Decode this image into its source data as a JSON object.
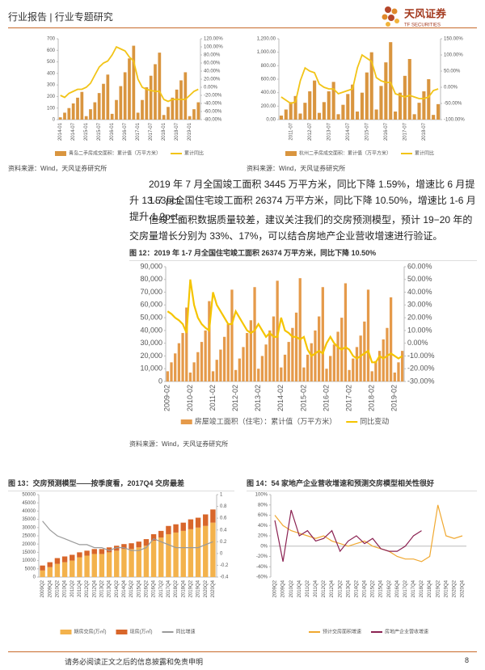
{
  "header": {
    "title": "行业报告 | 行业专题研究",
    "logo": "天风证券",
    "logo_en": "TF SECURITIES"
  },
  "paragraphs": [
    "2019 年 7 月全国竣工面积 3445 万平方米，同比下降 1.59%，增速比 6 月提升 13.53pct。",
    "1-7 月全国住宅竣工面积 26374 万平方米，同比下降 10.50%，增速比 1-6 月提升 1.2pct。",
    "但竣工面积数据质量较差，建议关注我们的交房预测模型，预计 19−20 年的交房量增长分别为 33%、17%，可以结合房地产企业营收增速进行验证。"
  ],
  "chart_data": [
    {
      "type": "bar",
      "source": "资料来源：Wind，天风证券研究所",
      "categories": [
        "2014-01",
        null,
        null,
        "2014-07",
        null,
        null,
        "2015-01",
        null,
        null,
        "2015-07",
        null,
        null,
        "2016-01",
        null,
        null,
        "2016-07",
        null,
        null,
        "2017-01",
        null,
        null,
        "2017-07",
        null,
        null,
        "2018-01",
        null,
        null,
        "2018-07",
        null,
        null,
        "2019-01",
        null,
        null
      ],
      "series": [
        {
          "name": "青岛二手房成交面积：累计值（万平方米）",
          "type": "bar",
          "color": "#d9953f",
          "values": [
            20,
            60,
            100,
            140,
            190,
            240,
            30,
            90,
            150,
            230,
            310,
            390,
            50,
            170,
            290,
            410,
            530,
            640,
            60,
            170,
            280,
            380,
            480,
            580,
            40,
            110,
            190,
            260,
            340,
            410,
            30,
            90,
            150
          ]
        },
        {
          "name": "累计同比",
          "type": "line",
          "axis": "y2",
          "color": "#f2c417",
          "values": [
            -20,
            -25,
            -15,
            -10,
            -5,
            -5,
            0,
            10,
            30,
            50,
            60,
            65,
            80,
            100,
            95,
            90,
            75,
            65,
            20,
            0,
            -5,
            -8,
            -10,
            -10,
            -30,
            -35,
            -30,
            -30,
            -30,
            -30,
            -20,
            -10,
            -5
          ]
        }
      ],
      "ylim": [
        0,
        700
      ],
      "yticks": [
        0,
        100,
        200,
        300,
        400,
        500,
        600,
        700
      ],
      "y2lim": [
        -80,
        120
      ],
      "y2ticks": [
        {
          "value": -80,
          "label": "-80.00%"
        },
        {
          "value": -60,
          "label": "-60.00%"
        },
        {
          "value": -40,
          "label": "-40.00%"
        },
        {
          "value": -20,
          "label": "-20.00%"
        },
        {
          "value": 0,
          "label": "0.00%"
        },
        {
          "value": 20,
          "label": "20.00%"
        },
        {
          "value": 40,
          "label": "40.00%"
        },
        {
          "value": 60,
          "label": "60.00%"
        },
        {
          "value": 80,
          "label": "80.00%"
        },
        {
          "value": 100,
          "label": "100.00%"
        },
        {
          "value": 120,
          "label": "120.00%"
        }
      ]
    },
    {
      "type": "bar",
      "source": "资料来源：Wind，天风证券研究所",
      "categories": [
        null,
        null,
        "2011-07",
        null,
        null,
        null,
        "2012-07",
        null,
        null,
        null,
        "2013-07",
        null,
        null,
        null,
        "2014-07",
        null,
        null,
        null,
        "2015-07",
        null,
        null,
        null,
        "2016-07",
        null,
        null,
        null,
        "2017-07",
        null,
        null,
        null,
        "2018-07",
        null,
        null,
        null
      ],
      "series": [
        {
          "name": "杭州二手房成交面积：累计值（万平方米）",
          "type": "bar",
          "color": "#d9953f",
          "values": [
            60,
            150,
            260,
            350,
            90,
            250,
            420,
            580,
            100,
            260,
            420,
            560,
            80,
            220,
            380,
            520,
            120,
            400,
            700,
            1000,
            150,
            500,
            850,
            1150,
            120,
            400,
            650,
            900,
            80,
            250,
            420,
            600,
            70,
            230
          ]
        },
        {
          "name": "累计同比",
          "type": "line",
          "axis": "y2",
          "color": "#f2c417",
          "values": [
            -30,
            -40,
            -50,
            -45,
            20,
            60,
            50,
            45,
            10,
            0,
            -5,
            -5,
            -20,
            -15,
            -10,
            -5,
            60,
            100,
            90,
            80,
            30,
            20,
            15,
            15,
            -20,
            -25,
            -30,
            -25,
            -30,
            -35,
            -35,
            -30,
            -10,
            -5
          ]
        }
      ],
      "ylim": [
        0,
        1200
      ],
      "yticks": [
        {
          "value": 0,
          "label": "0.00"
        },
        {
          "value": 200,
          "label": "200.00"
        },
        {
          "value": 400,
          "label": "400.00"
        },
        {
          "value": 600,
          "label": "600.00"
        },
        {
          "value": 800,
          "label": "800.00"
        },
        {
          "value": 1000,
          "label": "1,000.00"
        },
        {
          "value": 1200,
          "label": "1,200.00"
        }
      ],
      "y2lim": [
        -100,
        150
      ],
      "y2ticks": [
        {
          "value": -100,
          "label": "-100.00%"
        },
        {
          "value": -50,
          "label": "-50.00%"
        },
        {
          "value": 0,
          "label": "0.00%"
        },
        {
          "value": 50,
          "label": "50.00%"
        },
        {
          "value": 100,
          "label": "100.00%"
        },
        {
          "value": 150,
          "label": "150.00%"
        }
      ]
    },
    {
      "type": "bar",
      "title": "图 12：2019 年 1-7 月全国住宅竣工面积 26374 万平方米，同比下降 10.50%",
      "source": "资料来源：Wind，天风证券研究所",
      "categories": [
        "2009-02",
        null,
        null,
        null,
        null,
        null,
        "2010-02",
        null,
        null,
        null,
        null,
        null,
        "2011-02",
        null,
        null,
        null,
        null,
        null,
        "2012-02",
        null,
        null,
        null,
        null,
        null,
        "2013-02",
        null,
        null,
        null,
        null,
        null,
        "2014-02",
        null,
        null,
        null,
        null,
        null,
        "2015-02",
        null,
        null,
        null,
        null,
        null,
        "2016-02",
        null,
        null,
        null,
        null,
        null,
        "2017-02",
        null,
        null,
        null,
        null,
        null,
        "2018-02",
        null,
        null,
        null,
        null,
        null,
        "2019-02",
        null,
        null
      ],
      "series": [
        {
          "name": "房屋竣工面积（住宅）：累计值（万平方米）",
          "type": "bar",
          "color": "#e59a4a",
          "values": [
            8000,
            15000,
            22000,
            30000,
            38000,
            58000,
            7000,
            15000,
            23000,
            31000,
            40000,
            63000,
            8000,
            17000,
            25000,
            35000,
            45000,
            72000,
            9000,
            18000,
            27000,
            38000,
            48000,
            74000,
            10000,
            20000,
            29000,
            40000,
            51000,
            79000,
            11000,
            21000,
            31000,
            42000,
            54000,
            81000,
            11000,
            21000,
            30000,
            40000,
            51000,
            74000,
            10000,
            20000,
            29000,
            39000,
            50000,
            77000,
            9000,
            18000,
            27000,
            36000,
            47000,
            72000,
            8000,
            16000,
            24000,
            33000,
            42000,
            66000,
            7000,
            15000,
            24000
          ]
        },
        {
          "name": "同比变动",
          "type": "line",
          "axis": "y2",
          "color": "#f5c400",
          "values": [
            25,
            23,
            20,
            18,
            15,
            8,
            50,
            30,
            20,
            15,
            12,
            10,
            40,
            30,
            25,
            20,
            15,
            15,
            25,
            20,
            15,
            10,
            8,
            10,
            15,
            10,
            5,
            8,
            5,
            5,
            20,
            10,
            8,
            5,
            5,
            3,
            5,
            -5,
            -10,
            -8,
            -6,
            -8,
            0,
            5,
            0,
            -3,
            -5,
            -3,
            -5,
            -10,
            -12,
            -10,
            -8,
            -6,
            -15,
            -15,
            -10,
            -12,
            -10,
            -8,
            -10,
            -12,
            -10
          ]
        }
      ],
      "ylim": [
        0,
        90000
      ],
      "yticks": [
        0,
        {
          "value": 10000,
          "label": "10,000"
        },
        {
          "value": 20000,
          "label": "20,000"
        },
        {
          "value": 30000,
          "label": "30,000"
        },
        {
          "value": 40000,
          "label": "40,000"
        },
        {
          "value": 50000,
          "label": "50,000"
        },
        {
          "value": 60000,
          "label": "60,000"
        },
        {
          "value": 70000,
          "label": "70,000"
        },
        {
          "value": 80000,
          "label": "80,000"
        },
        {
          "value": 90000,
          "label": "90,000"
        }
      ],
      "y2lim": [
        -30,
        60
      ],
      "y2ticks": [
        {
          "value": -30,
          "label": "-30.00%"
        },
        {
          "value": -20,
          "label": "-20.00%"
        },
        {
          "value": -10,
          "label": "-10.00%"
        },
        {
          "value": 0,
          "label": "0.00%"
        },
        {
          "value": 10,
          "label": "10.00%"
        },
        {
          "value": 20,
          "label": "20.00%"
        },
        {
          "value": 30,
          "label": "30.00%"
        },
        {
          "value": 40,
          "label": "40.00%"
        },
        {
          "value": 50,
          "label": "50.00%"
        },
        {
          "value": 60,
          "label": "60.00%"
        }
      ]
    },
    {
      "type": "bar",
      "stacked": true,
      "title": "图 13：交房预测模型——按季度看，2017Q4 交房最差",
      "categories": [
        "2009Q2",
        "2009Q4",
        "2010Q2",
        "2010Q4",
        "2011Q2",
        "2011Q4",
        "2012Q2",
        "2012Q4",
        "2013Q2",
        "2013Q4",
        "2014Q2",
        "2014Q4",
        "2015Q2",
        "2015Q4",
        "2016Q2",
        "2016Q4",
        "2017Q2",
        "2017Q4",
        "2018Q2",
        "2018Q4",
        "2019Q2",
        "2019Q4",
        "2020Q2",
        "2020Q4"
      ],
      "series": [
        {
          "name": "期房交房(万㎡)",
          "type": "bar",
          "color": "#f3b24c",
          "values": [
            4000,
            6000,
            8000,
            9000,
            10000,
            12000,
            13000,
            14000,
            14000,
            15000,
            16000,
            17000,
            17000,
            18000,
            19000,
            22000,
            24000,
            26000,
            27000,
            28000,
            29000,
            30000,
            31000,
            33000
          ]
        },
        {
          "name": "现房(万㎡)",
          "type": "bar",
          "color": "#d8662a",
          "values": [
            3000,
            3000,
            3500,
            3500,
            3500,
            3000,
            3000,
            3000,
            3000,
            3000,
            3000,
            3000,
            3500,
            3500,
            4000,
            4000,
            4000,
            5000,
            5000,
            5000,
            6000,
            6000,
            7000,
            8000
          ]
        },
        {
          "name": "同比增速",
          "type": "line",
          "axis": "y2",
          "color": "#9a9a9a",
          "values": [
            0.55,
            0.4,
            0.3,
            0.25,
            0.2,
            0.15,
            0.15,
            0.1,
            0.1,
            0.05,
            0.1,
            0.1,
            0.05,
            0.05,
            0.1,
            0.25,
            0.2,
            0.15,
            0.1,
            0.1,
            0.1,
            0.1,
            0.15,
            0.2
          ]
        }
      ],
      "ylim": [
        0,
        50000
      ],
      "yticks": [
        0,
        5000,
        10000,
        15000,
        20000,
        25000,
        30000,
        35000,
        40000,
        45000,
        50000
      ],
      "y2lim": [
        -0.4,
        1
      ],
      "y2ticks": [
        -0.4,
        -0.2,
        0,
        0.2,
        0.4,
        0.6,
        0.8,
        1
      ]
    },
    {
      "type": "line",
      "title": "图 14：54 家地产企业营收增速和预测交房模型相关性很好",
      "categories": [
        "2009Q2",
        "2009Q4",
        "2010Q2",
        "2010Q4",
        "2011Q2",
        "2011Q4",
        "2012Q2",
        "2012Q4",
        "2013Q2",
        "2013Q4",
        "2014Q2",
        "2014Q4",
        "2015Q2",
        "2015Q4",
        "2016Q2",
        "2016Q4",
        "2017Q2",
        "2017Q4",
        "2018Q2",
        "2018Q4",
        "2019Q2",
        "2019Q4",
        "2020Q2",
        "2020Q4"
      ],
      "series": [
        {
          "name": "预计交房面积增速",
          "color": "#f0a830",
          "values": [
            60,
            40,
            30,
            25,
            20,
            15,
            20,
            10,
            5,
            0,
            5,
            10,
            0,
            -5,
            -10,
            -20,
            -25,
            -25,
            -30,
            -20,
            80,
            20,
            15,
            20
          ]
        },
        {
          "name": "房地产企业营收增速",
          "color": "#8b2252",
          "values": [
            50,
            -30,
            70,
            20,
            30,
            10,
            15,
            30,
            -10,
            10,
            20,
            5,
            15,
            -5,
            -10,
            -10,
            0,
            20,
            30,
            null,
            null,
            null,
            null,
            null
          ]
        }
      ],
      "ylim": [
        -60,
        100
      ],
      "yticks": [
        {
          "value": -60,
          "label": "-60%"
        },
        {
          "value": -40,
          "label": "-40%"
        },
        {
          "value": -20,
          "label": "-20%"
        },
        {
          "value": 0,
          "label": "0%"
        },
        {
          "value": 20,
          "label": "20%"
        },
        {
          "value": 40,
          "label": "40%"
        },
        {
          "value": 60,
          "label": "60%"
        },
        {
          "value": 80,
          "label": "80%"
        },
        {
          "value": 100,
          "label": "100%"
        }
      ]
    }
  ],
  "footer": {
    "disclaimer": "请务必阅读正文之后的信息披露和免责申明",
    "page": "8"
  }
}
